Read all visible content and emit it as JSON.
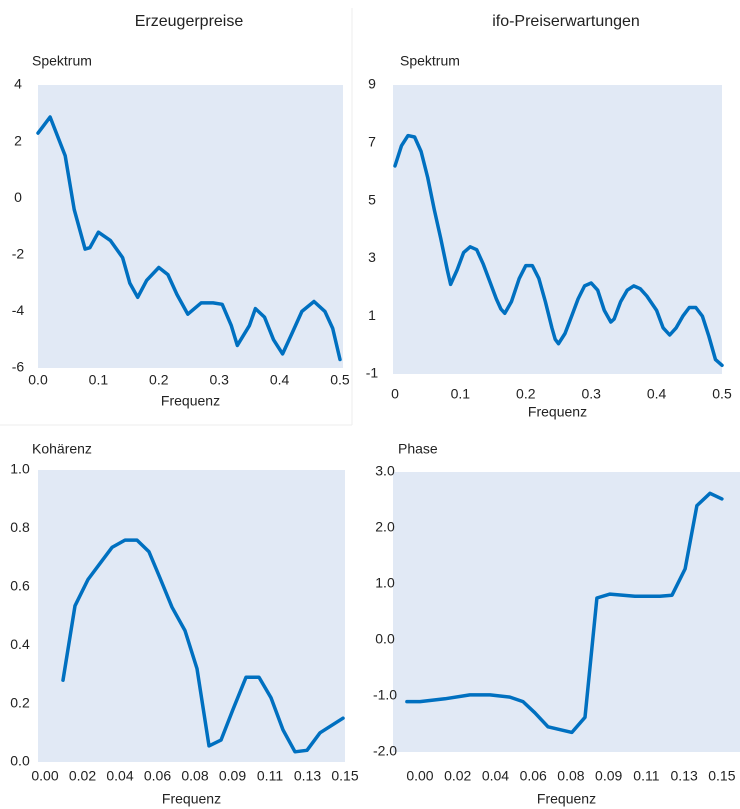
{
  "chart_data": [
    {
      "type": "line",
      "title": "Erzeugerpreise",
      "ylabel": "Spektrum",
      "xlabel": "Frequenz",
      "x": [
        0,
        0.02,
        0.045,
        0.06,
        0.078,
        0.086,
        0.1,
        0.12,
        0.14,
        0.152,
        0.165,
        0.18,
        0.2,
        0.215,
        0.23,
        0.248,
        0.27,
        0.29,
        0.305,
        0.32,
        0.33,
        0.35,
        0.36,
        0.375,
        0.39,
        0.405,
        0.42,
        0.437,
        0.457,
        0.475,
        0.488,
        0.5
      ],
      "values": [
        2.3,
        2.87,
        1.5,
        -0.4,
        -1.8,
        -1.75,
        -1.2,
        -1.5,
        -2.1,
        -3.0,
        -3.5,
        -2.9,
        -2.45,
        -2.7,
        -3.4,
        -4.1,
        -3.7,
        -3.7,
        -3.75,
        -4.5,
        -5.2,
        -4.5,
        -3.9,
        -4.2,
        -5.0,
        -5.5,
        -4.8,
        -4.0,
        -3.65,
        -4.0,
        -4.6,
        -5.7
      ],
      "color": "#0070c0",
      "xlim": [
        0,
        0.505
      ],
      "xticks": [
        {
          "value": 0,
          "label": "0.0"
        },
        0.1,
        0.2,
        0.3,
        0.4,
        0.5
      ],
      "ylim": [
        -6,
        4
      ],
      "yticks": [
        -6,
        -4,
        -2,
        0,
        2,
        4
      ]
    },
    {
      "type": "line",
      "title": "ifo-Preiserwartungen",
      "ylabel": "Spektrum",
      "xlabel": "Frequenz",
      "x": [
        0,
        0.01,
        0.02,
        0.03,
        0.04,
        0.05,
        0.06,
        0.07,
        0.08,
        0.085,
        0.095,
        0.105,
        0.115,
        0.125,
        0.135,
        0.145,
        0.155,
        0.162,
        0.168,
        0.178,
        0.19,
        0.2,
        0.21,
        0.22,
        0.23,
        0.24,
        0.245,
        0.25,
        0.26,
        0.27,
        0.28,
        0.29,
        0.3,
        0.31,
        0.32,
        0.33,
        0.335,
        0.345,
        0.355,
        0.365,
        0.375,
        0.385,
        0.4,
        0.41,
        0.42,
        0.43,
        0.44,
        0.45,
        0.46,
        0.47,
        0.48,
        0.49,
        0.5
      ],
      "values": [
        6.2,
        6.9,
        7.25,
        7.2,
        6.7,
        5.8,
        4.7,
        3.7,
        2.6,
        2.1,
        2.6,
        3.2,
        3.4,
        3.3,
        2.8,
        2.2,
        1.6,
        1.25,
        1.1,
        1.5,
        2.3,
        2.75,
        2.75,
        2.3,
        1.5,
        0.6,
        0.2,
        0.05,
        0.4,
        1.0,
        1.6,
        2.05,
        2.15,
        1.9,
        1.2,
        0.8,
        0.9,
        1.5,
        1.9,
        2.05,
        1.95,
        1.7,
        1.2,
        0.6,
        0.35,
        0.6,
        1.0,
        1.3,
        1.3,
        1.0,
        0.3,
        -0.5,
        -0.7
      ],
      "color": "#0070c0",
      "xlim": [
        -0.003,
        0.5
      ],
      "xticks": [
        0,
        0.1,
        0.2,
        0.3,
        0.4,
        0.5
      ],
      "ylim": [
        -1,
        9
      ],
      "yticks": [
        -1,
        1,
        3,
        5,
        7,
        9
      ]
    },
    {
      "type": "line",
      "ylabel": "Kohärenz",
      "xlabel": "Frequenz",
      "x": [
        0.009,
        0.015,
        0.0215,
        0.0275,
        0.0335,
        0.04,
        0.046,
        0.052,
        0.0575,
        0.0635,
        0.07,
        0.076,
        0.082,
        0.088,
        0.094,
        0.1005,
        0.107,
        0.113,
        0.119,
        0.125,
        0.131,
        0.1375,
        0.149
      ],
      "values": [
        0.28,
        0.535,
        0.625,
        0.68,
        0.735,
        0.76,
        0.76,
        0.72,
        0.63,
        0.53,
        0.45,
        0.32,
        0.055,
        0.075,
        0.18,
        0.29,
        0.29,
        0.22,
        0.11,
        0.035,
        0.04,
        0.1,
        0.15
      ],
      "color": "#0070c0",
      "xlim": [
        -0.0035,
        0.15
      ],
      "xticks": [
        {
          "value": 0,
          "label": "0.00"
        },
        {
          "value": 0.01875,
          "label": "0.02"
        },
        {
          "value": 0.0375,
          "label": "0.04"
        },
        {
          "value": 0.05625,
          "label": "0.06"
        },
        {
          "value": 0.075,
          "label": "0.08"
        },
        {
          "value": 0.09375,
          "label": "0.09"
        },
        {
          "value": 0.1125,
          "label": "0.11"
        },
        {
          "value": 0.13125,
          "label": "0.13"
        },
        {
          "value": 0.15,
          "label": "0.15"
        }
      ],
      "ylim": [
        0,
        1
      ],
      "yticks": [
        {
          "value": 0,
          "label": "0.0"
        },
        0.2,
        0.4,
        0.6,
        0.8,
        {
          "value": 1,
          "label": "1.0"
        }
      ]
    },
    {
      "type": "line",
      "ylabel": "Phase",
      "xlabel": "Frequenz",
      "x": [
        -0.0065,
        0,
        0.0124,
        0.0248,
        0.0348,
        0.0447,
        0.0512,
        0.0571,
        0.0636,
        0.0755,
        0.082,
        0.0879,
        0.0944,
        0.1068,
        0.1192,
        0.1252,
        0.1317,
        0.1376,
        0.1441,
        0.15
      ],
      "values": [
        -1.1,
        -1.1,
        -1.05,
        -0.98,
        -0.98,
        -1.02,
        -1.1,
        -1.3,
        -1.55,
        -1.65,
        -1.38,
        0.75,
        0.82,
        0.78,
        0.78,
        0.8,
        1.27,
        2.4,
        2.62,
        2.52
      ],
      "color": "#0070c0",
      "xlim": [
        -0.0134,
        0.159
      ],
      "xticks": [
        {
          "value": 0,
          "label": "0.00"
        },
        {
          "value": 0.01875,
          "label": "0.02"
        },
        {
          "value": 0.0375,
          "label": "0.04"
        },
        {
          "value": 0.05625,
          "label": "0.06"
        },
        {
          "value": 0.075,
          "label": "0.08"
        },
        {
          "value": 0.09375,
          "label": "0.09"
        },
        {
          "value": 0.1125,
          "label": "0.11"
        },
        {
          "value": 0.13125,
          "label": "0.13"
        },
        {
          "value": 0.15,
          "label": "0.15"
        }
      ],
      "ylim": [
        -2,
        3
      ],
      "yticks": [
        {
          "value": -2,
          "label": "-2.0"
        },
        {
          "value": -1,
          "label": "-1.0"
        },
        {
          "value": 0,
          "label": "0.0"
        },
        {
          "value": 1,
          "label": "1.0"
        },
        {
          "value": 2,
          "label": "2.0"
        },
        {
          "value": 3,
          "label": "3.0"
        }
      ]
    }
  ]
}
